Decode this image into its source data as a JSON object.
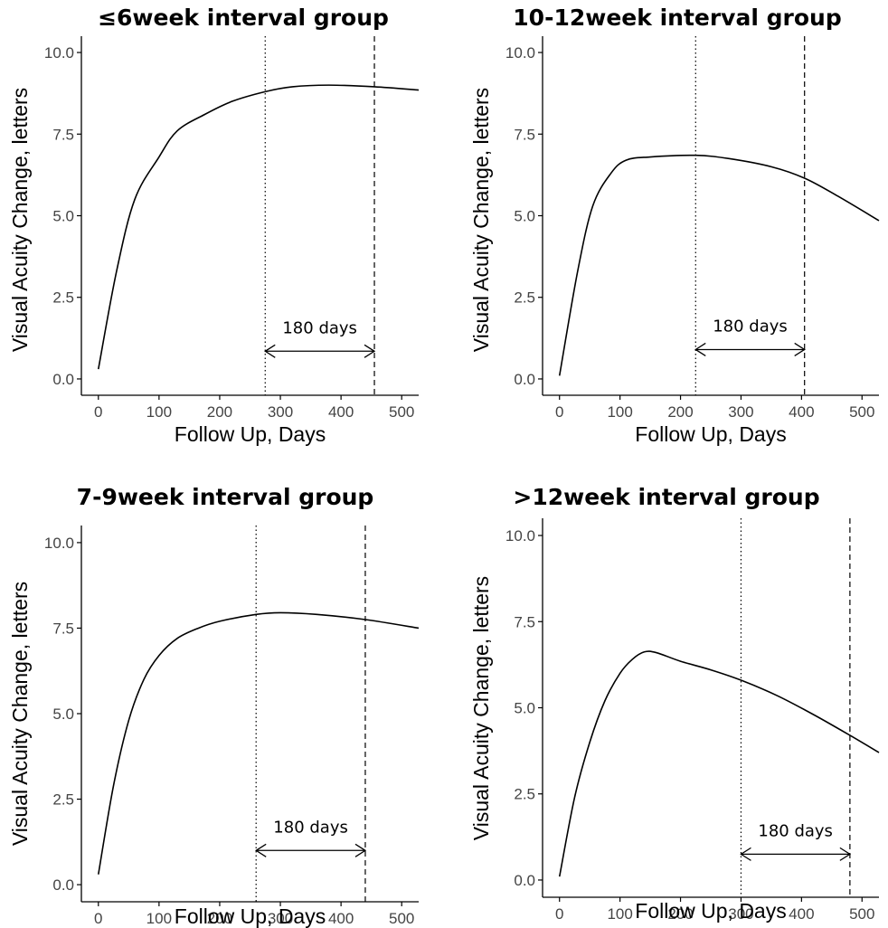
{
  "chart_data": [
    {
      "type": "line",
      "title": "≤6week interval group",
      "xlabel": "Follow Up, Days",
      "ylabel": "Visual Acuity Change, letters",
      "xlim": [
        -28,
        528
      ],
      "ylim": [
        -0.5,
        10.5
      ],
      "xticks": [
        0,
        100,
        200,
        300,
        400,
        500
      ],
      "xtick_labels": [
        "0",
        "100",
        "200",
        "300",
        "400",
        "500"
      ],
      "yticks": [
        0,
        2.5,
        5,
        7.5,
        10
      ],
      "ytick_labels": [
        "0.0",
        "2.5",
        "5.0",
        "7.5",
        "10.0"
      ],
      "grid": false,
      "vlines": [
        {
          "x": 275,
          "style": "dotted"
        },
        {
          "x": 455,
          "style": "dashed"
        }
      ],
      "annotation": {
        "text": "180 days",
        "x_start": 275,
        "x_end": 455,
        "y": 0.85
      },
      "series": [
        {
          "x": [
            0,
            30,
            60,
            100,
            130,
            175,
            220,
            275,
            320,
            380,
            455,
            528
          ],
          "y": [
            0.3,
            3.3,
            5.5,
            6.8,
            7.6,
            8.1,
            8.5,
            8.8,
            8.95,
            9.0,
            8.95,
            8.85
          ]
        }
      ]
    },
    {
      "type": "line",
      "title": "10-12week interval group",
      "xlabel": "Follow Up, Days",
      "ylabel": "Visual Acuity Change, letters",
      "xlim": [
        -28,
        528
      ],
      "ylim": [
        -0.5,
        10.5
      ],
      "xticks": [
        0,
        100,
        200,
        300,
        400,
        500
      ],
      "xtick_labels": [
        "0",
        "100",
        "200",
        "300",
        "400",
        "500"
      ],
      "yticks": [
        0,
        2.5,
        5,
        7.5,
        10
      ],
      "ytick_labels": [
        "0.0",
        "2.5",
        "5.0",
        "7.5",
        "10.0"
      ],
      "grid": false,
      "vlines": [
        {
          "x": 225,
          "style": "dotted"
        },
        {
          "x": 405,
          "style": "dashed"
        }
      ],
      "annotation": {
        "text": "180 days",
        "x_start": 225,
        "x_end": 405,
        "y": 0.9
      },
      "series": [
        {
          "x": [
            0,
            30,
            55,
            85,
            110,
            150,
            225,
            280,
            350,
            405,
            460,
            528
          ],
          "y": [
            0.1,
            3.3,
            5.3,
            6.3,
            6.7,
            6.8,
            6.85,
            6.75,
            6.5,
            6.15,
            5.6,
            4.85
          ]
        }
      ]
    },
    {
      "type": "line",
      "title": "7-9week interval group",
      "xlabel": "Follow Up, Days",
      "ylabel": "Visual Acuity Change, letters",
      "xlim": [
        -28,
        528
      ],
      "ylim": [
        -0.5,
        10.5
      ],
      "xticks": [
        0,
        100,
        200,
        300,
        400,
        500
      ],
      "xtick_labels": [
        "0",
        "100",
        "200",
        "300",
        "400",
        "500"
      ],
      "yticks": [
        0,
        2.5,
        5,
        7.5,
        10
      ],
      "ytick_labels": [
        "0.0",
        "2.5",
        "5.0",
        "7.5",
        "10.0"
      ],
      "grid": false,
      "vlines": [
        {
          "x": 260,
          "style": "dotted"
        },
        {
          "x": 440,
          "style": "dashed"
        }
      ],
      "annotation": {
        "text": "180 days",
        "x_start": 260,
        "x_end": 440,
        "y": 1.0
      },
      "series": [
        {
          "x": [
            0,
            25,
            50,
            75,
            100,
            130,
            165,
            200,
            260,
            300,
            360,
            440,
            528
          ],
          "y": [
            0.3,
            2.9,
            4.8,
            6.0,
            6.7,
            7.2,
            7.5,
            7.7,
            7.9,
            7.95,
            7.9,
            7.75,
            7.5
          ]
        }
      ]
    },
    {
      "type": "line",
      "title": ">12week interval group",
      "xlabel": "Follow Up, Days",
      "ylabel": "Visual Acuity Change, letters",
      "xlim": [
        -28,
        528
      ],
      "ylim": [
        -0.5,
        10.5
      ],
      "xticks": [
        0,
        100,
        200,
        300,
        400,
        500
      ],
      "xtick_labels": [
        "0",
        "100",
        "200",
        "300",
        "400",
        "500"
      ],
      "yticks": [
        0,
        2.5,
        5,
        7.5,
        10
      ],
      "ytick_labels": [
        "0.0",
        "2.5",
        "5.0",
        "7.5",
        "10.0"
      ],
      "grid": false,
      "vlines": [
        {
          "x": 300,
          "style": "dotted"
        },
        {
          "x": 480,
          "style": "dashed"
        }
      ],
      "annotation": {
        "text": "180 days",
        "x_start": 300,
        "x_end": 480,
        "y": 0.75
      },
      "series": [
        {
          "x": [
            0,
            25,
            50,
            75,
            100,
            120,
            140,
            160,
            200,
            250,
            300,
            360,
            420,
            480,
            528
          ],
          "y": [
            0.1,
            2.4,
            4.0,
            5.2,
            6.0,
            6.4,
            6.62,
            6.6,
            6.35,
            6.1,
            5.8,
            5.35,
            4.8,
            4.2,
            3.7
          ]
        }
      ]
    }
  ]
}
